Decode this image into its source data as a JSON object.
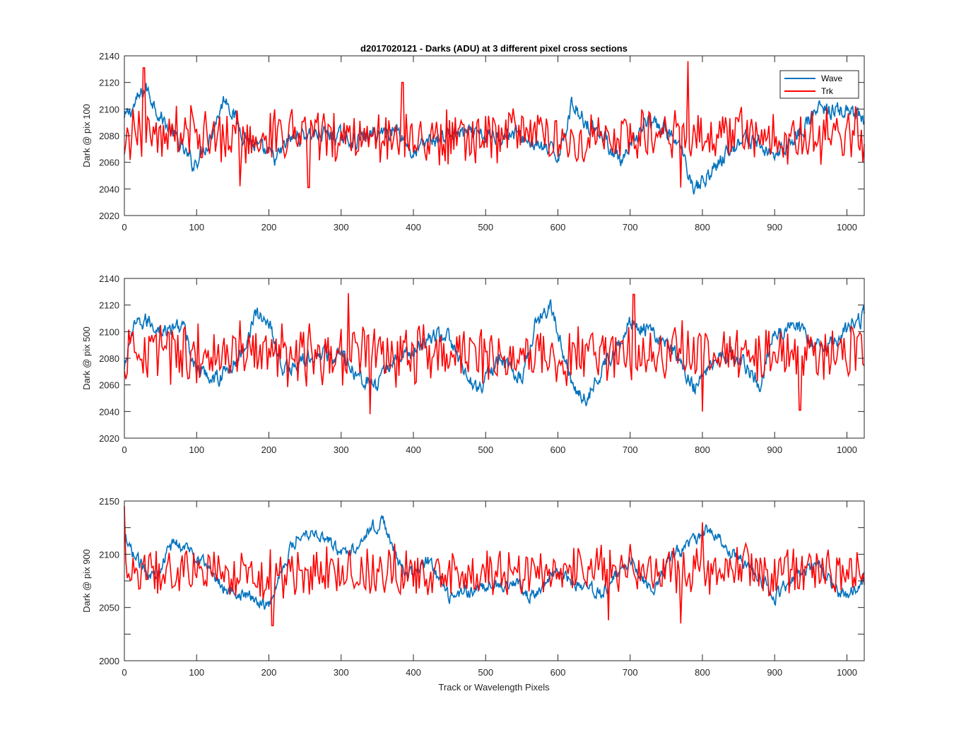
{
  "figure": {
    "title": "d2017020121 - Darks (ADU) at 3 different pixel cross sections",
    "xlabel": "Track or Wavelength Pixels"
  },
  "legend": {
    "placement": "top-right of first panel",
    "entries": [
      {
        "label": "Wave",
        "color": "#0072BD"
      },
      {
        "label": "Trk",
        "color": "#FF0000"
      }
    ]
  },
  "chart_data": [
    {
      "type": "line",
      "title": "d2017020121 - Darks (ADU) at 3 different pixel cross sections",
      "xlabel": "",
      "ylabel": "Dark @ pix 100",
      "xlim": [
        0,
        1024
      ],
      "ylim": [
        2020,
        2140
      ],
      "xticks": [
        "0",
        "100",
        "200",
        "300",
        "400",
        "500",
        "600",
        "700",
        "800",
        "900",
        "1000"
      ],
      "yticks": [
        "2020",
        "2040",
        "2060",
        "2080",
        "2100",
        "2120",
        "2140"
      ],
      "series": [
        {
          "name": "Wave",
          "color": "#0072BD",
          "approx_profile": [
            [
              0,
              2092
            ],
            [
              20,
              2108
            ],
            [
              30,
              2116
            ],
            [
              50,
              2095
            ],
            [
              80,
              2070
            ],
            [
              95,
              2058
            ],
            [
              115,
              2075
            ],
            [
              140,
              2110
            ],
            [
              160,
              2085
            ],
            [
              180,
              2072
            ],
            [
              210,
              2062
            ],
            [
              230,
              2078
            ],
            [
              260,
              2082
            ],
            [
              290,
              2080
            ],
            [
              320,
              2076
            ],
            [
              350,
              2082
            ],
            [
              380,
              2085
            ],
            [
              400,
              2065
            ],
            [
              420,
              2076
            ],
            [
              460,
              2082
            ],
            [
              500,
              2079
            ],
            [
              540,
              2082
            ],
            [
              580,
              2070
            ],
            [
              600,
              2065
            ],
            [
              620,
              2104
            ],
            [
              640,
              2090
            ],
            [
              660,
              2082
            ],
            [
              690,
              2058
            ],
            [
              720,
              2090
            ],
            [
              750,
              2084
            ],
            [
              770,
              2070
            ],
            [
              790,
              2040
            ],
            [
              810,
              2052
            ],
            [
              840,
              2070
            ],
            [
              860,
              2080
            ],
            [
              880,
              2072
            ],
            [
              900,
              2066
            ],
            [
              930,
              2080
            ],
            [
              960,
              2100
            ],
            [
              1000,
              2098
            ],
            [
              1024,
              2090
            ]
          ]
        },
        {
          "name": "Trk",
          "color": "#FF0000",
          "base": 2080,
          "amplitude": 20,
          "peaks": [
            [
              27,
              2131
            ],
            [
              385,
              2120
            ],
            [
              780,
              2136
            ]
          ],
          "troughs": [
            [
              160,
              2042
            ],
            [
              255,
              2041
            ],
            [
              770,
              2041
            ]
          ]
        }
      ]
    },
    {
      "type": "line",
      "title": "",
      "xlabel": "",
      "ylabel": "Dark @ pix 500",
      "xlim": [
        0,
        1024
      ],
      "ylim": [
        2020,
        2140
      ],
      "xticks": [
        "0",
        "100",
        "200",
        "300",
        "400",
        "500",
        "600",
        "700",
        "800",
        "900",
        "1000"
      ],
      "yticks": [
        "2020",
        "2040",
        "2060",
        "2080",
        "2100",
        "2120",
        "2140"
      ],
      "series": [
        {
          "name": "Wave",
          "color": "#0072BD",
          "approx_profile": [
            [
              0,
              2070
            ],
            [
              10,
              2100
            ],
            [
              30,
              2108
            ],
            [
              60,
              2100
            ],
            [
              80,
              2106
            ],
            [
              100,
              2070
            ],
            [
              130,
              2065
            ],
            [
              160,
              2080
            ],
            [
              180,
              2112
            ],
            [
              200,
              2108
            ],
            [
              220,
              2070
            ],
            [
              260,
              2082
            ],
            [
              300,
              2085
            ],
            [
              320,
              2070
            ],
            [
              350,
              2058
            ],
            [
              370,
              2078
            ],
            [
              400,
              2085
            ],
            [
              430,
              2098
            ],
            [
              450,
              2095
            ],
            [
              470,
              2068
            ],
            [
              490,
              2058
            ],
            [
              520,
              2078
            ],
            [
              550,
              2065
            ],
            [
              570,
              2110
            ],
            [
              590,
              2118
            ],
            [
              600,
              2100
            ],
            [
              620,
              2060
            ],
            [
              640,
              2050
            ],
            [
              660,
              2070
            ],
            [
              700,
              2108
            ],
            [
              730,
              2100
            ],
            [
              760,
              2085
            ],
            [
              790,
              2058
            ],
            [
              820,
              2085
            ],
            [
              860,
              2075
            ],
            [
              880,
              2060
            ],
            [
              900,
              2100
            ],
            [
              930,
              2105
            ],
            [
              960,
              2088
            ],
            [
              1000,
              2100
            ],
            [
              1024,
              2112
            ]
          ]
        },
        {
          "name": "Trk",
          "color": "#FF0000",
          "base": 2083,
          "amplitude": 22,
          "peaks": [
            [
              310,
              2129
            ],
            [
              705,
              2128
            ]
          ],
          "troughs": [
            [
              340,
              2038
            ],
            [
              800,
              2040
            ],
            [
              935,
              2041
            ]
          ]
        }
      ]
    },
    {
      "type": "line",
      "title": "",
      "xlabel": "Track or Wavelength Pixels",
      "ylabel": "Dark @ pix 900",
      "xlim": [
        0,
        1024
      ],
      "ylim": [
        2000,
        2150
      ],
      "xticks": [
        "0",
        "100",
        "200",
        "300",
        "400",
        "500",
        "600",
        "700",
        "800",
        "900",
        "1000"
      ],
      "yticks": [
        "2000",
        "",
        "2050",
        "",
        "2100",
        "",
        "2150"
      ],
      "series": [
        {
          "name": "Wave",
          "color": "#0072BD",
          "approx_profile": [
            [
              0,
              2112
            ],
            [
              20,
              2092
            ],
            [
              40,
              2080
            ],
            [
              70,
              2112
            ],
            [
              100,
              2100
            ],
            [
              140,
              2068
            ],
            [
              180,
              2058
            ],
            [
              200,
              2052
            ],
            [
              220,
              2090
            ],
            [
              240,
              2118
            ],
            [
              260,
              2122
            ],
            [
              280,
              2115
            ],
            [
              300,
              2100
            ],
            [
              320,
              2108
            ],
            [
              340,
              2125
            ],
            [
              360,
              2130
            ],
            [
              380,
              2090
            ],
            [
              400,
              2080
            ],
            [
              420,
              2095
            ],
            [
              450,
              2058
            ],
            [
              470,
              2065
            ],
            [
              500,
              2068
            ],
            [
              540,
              2075
            ],
            [
              560,
              2060
            ],
            [
              600,
              2082
            ],
            [
              630,
              2070
            ],
            [
              660,
              2062
            ],
            [
              700,
              2095
            ],
            [
              730,
              2065
            ],
            [
              760,
              2100
            ],
            [
              790,
              2112
            ],
            [
              810,
              2125
            ],
            [
              830,
              2108
            ],
            [
              860,
              2092
            ],
            [
              880,
              2078
            ],
            [
              900,
              2060
            ],
            [
              930,
              2080
            ],
            [
              960,
              2090
            ],
            [
              980,
              2070
            ],
            [
              1000,
              2058
            ],
            [
              1024,
              2078
            ]
          ]
        },
        {
          "name": "Trk",
          "color": "#FF0000",
          "base": 2083,
          "amplitude": 24,
          "peaks": [
            [
              0,
              2145
            ],
            [
              800,
              2130
            ]
          ],
          "troughs": [
            [
              205,
              2033
            ],
            [
              770,
              2035
            ],
            [
              670,
              2038
            ]
          ]
        }
      ]
    }
  ]
}
